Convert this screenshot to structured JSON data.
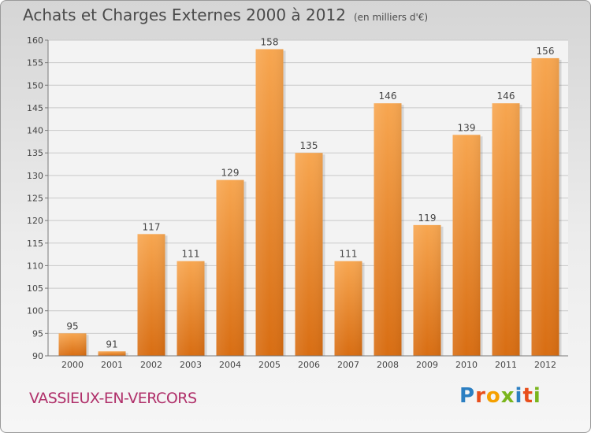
{
  "header": {
    "title": "Achats et Charges Externes 2000 à 2012",
    "unit": "(en milliers d'€)"
  },
  "footer": {
    "commune": "VASSIEUX-EN-VERCORS",
    "logo": "Proxiti"
  },
  "chart_data": {
    "type": "bar",
    "title": "Achats et Charges Externes 2000 à 2012",
    "subtitle": "(en milliers d'€)",
    "xlabel": "",
    "ylabel": "",
    "categories": [
      "2000",
      "2001",
      "2002",
      "2003",
      "2004",
      "2005",
      "2006",
      "2007",
      "2008",
      "2009",
      "2010",
      "2011",
      "2012"
    ],
    "values": [
      95,
      91,
      117,
      111,
      129,
      158,
      135,
      111,
      146,
      119,
      139,
      146,
      156
    ],
    "ylim": [
      90,
      160
    ],
    "yticks": [
      90,
      95,
      100,
      105,
      110,
      115,
      120,
      125,
      130,
      135,
      140,
      145,
      150,
      155,
      160
    ],
    "grid": true,
    "bar_color": "#f08a2a",
    "data_labels": true
  }
}
